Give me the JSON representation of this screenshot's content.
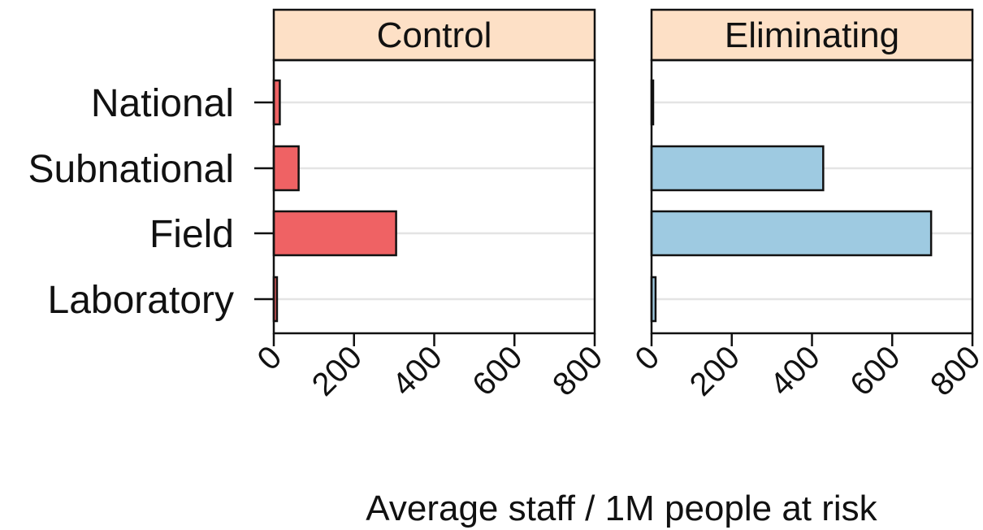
{
  "chart_data": {
    "type": "bar",
    "orientation": "horizontal",
    "categories": [
      "National",
      "Subnational",
      "Field",
      "Laboratory"
    ],
    "xlabel": "Average staff / 1M people at risk",
    "xlim": [
      0,
      800
    ],
    "xticks": [
      "0",
      "200",
      "400",
      "600",
      "800"
    ],
    "grid": true,
    "panels": [
      {
        "name": "Control",
        "color": "#ef6264",
        "values": [
          15,
          62,
          305,
          8
        ]
      },
      {
        "name": "Eliminating",
        "color": "#9ecae1",
        "values": [
          4,
          428,
          697,
          10
        ]
      }
    ]
  },
  "colors": {
    "strip": "#fde0c6",
    "grid": "#e4e4e4",
    "outline": "#111111"
  }
}
